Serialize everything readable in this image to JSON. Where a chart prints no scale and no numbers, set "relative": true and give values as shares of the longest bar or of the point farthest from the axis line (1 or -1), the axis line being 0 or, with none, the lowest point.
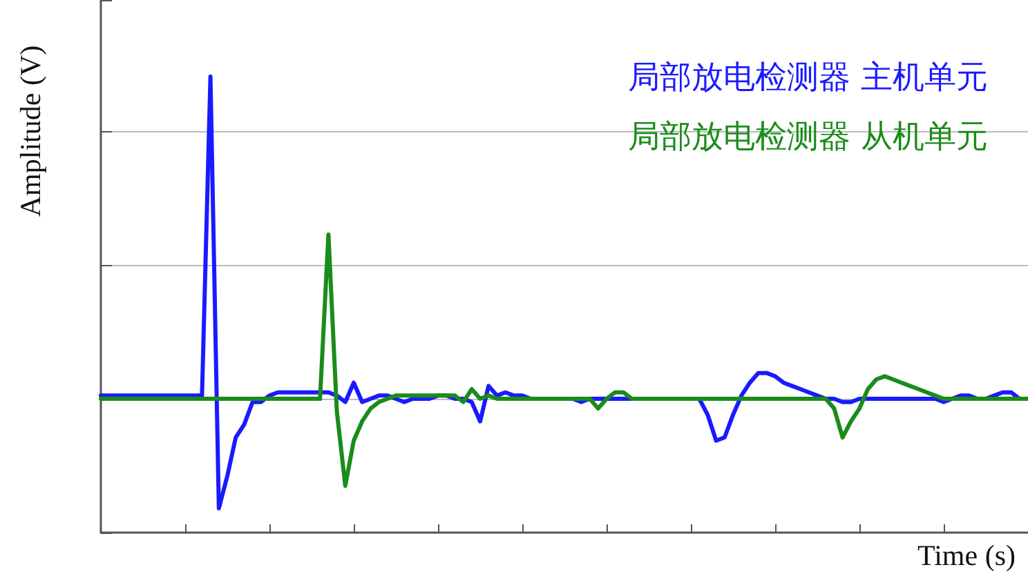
{
  "chart_data": {
    "type": "line",
    "relative": true,
    "xlabel": "Time (s)",
    "ylabel": "Amplitude (V)",
    "categories": [
      null,
      null,
      null,
      null,
      null,
      null,
      null,
      null,
      null,
      null,
      null,
      null,
      null,
      null,
      null,
      null,
      null,
      null,
      null,
      null,
      null,
      null,
      null,
      null,
      null,
      null,
      null,
      null,
      null,
      null,
      null,
      null,
      null,
      null,
      null,
      null,
      null,
      null,
      null,
      null,
      null,
      null,
      null,
      null,
      null,
      null,
      null,
      null,
      null,
      null,
      null,
      null,
      null,
      null,
      null,
      null,
      null,
      null,
      null,
      null,
      null,
      null,
      null,
      null,
      null,
      null,
      null,
      null,
      null,
      null,
      null,
      null,
      null,
      null,
      null,
      null,
      null,
      null,
      null,
      null,
      null,
      null,
      null,
      null,
      null,
      null,
      null,
      null,
      null,
      null,
      null,
      null,
      null,
      null,
      null,
      null,
      null,
      null,
      null,
      null,
      null,
      null,
      null,
      null,
      null,
      null,
      null,
      null,
      null,
      null,
      null
    ],
    "series": [
      {
        "name": "局部放电检测器 主机单元",
        "color": "#1a1aff",
        "values": [
          0.01,
          0.01,
          0.01,
          0.01,
          0.01,
          0.01,
          0.01,
          0.01,
          0.01,
          0.01,
          0.01,
          0.01,
          0.01,
          1,
          -0.34,
          -0.24,
          -0.12,
          -0.08,
          -0.01,
          -0.01,
          0.01,
          0.02,
          0.02,
          0.02,
          0.02,
          0.02,
          0.02,
          0.02,
          0.01,
          -0.01,
          0.05,
          -0.01,
          0,
          0.01,
          0.01,
          0,
          -0.01,
          0,
          0,
          0,
          0.01,
          0.01,
          0,
          0,
          -0.01,
          -0.07,
          0.04,
          0.01,
          0.02,
          0.01,
          0.01,
          0,
          0,
          0,
          0,
          0,
          0,
          -0.01,
          0,
          0,
          0,
          0,
          0,
          0,
          0,
          0,
          0,
          0,
          0,
          0,
          0,
          0,
          -0.05,
          -0.13,
          -0.12,
          -0.05,
          0.01,
          0.05,
          0.08,
          0.08,
          0.07,
          0.05,
          0.04,
          0.03,
          0.02,
          0.01,
          0,
          0,
          -0.01,
          -0.01,
          0,
          0,
          0,
          0,
          0,
          0,
          0,
          0,
          0,
          0,
          -0.01,
          0,
          0.01,
          0.01,
          0,
          0,
          0.01,
          0.02,
          0.02,
          0,
          0
        ]
      },
      {
        "name": "局部放电检测器 从机单元",
        "color": "#1a8c1a",
        "values": [
          0,
          0,
          0,
          0,
          0,
          0,
          0,
          0,
          0,
          0,
          0,
          0,
          0,
          0,
          0,
          0,
          0,
          0,
          0,
          0,
          0,
          0,
          0,
          0,
          0,
          0,
          0,
          0.51,
          -0.04,
          -0.27,
          -0.13,
          -0.07,
          -0.03,
          -0.01,
          0,
          0.01,
          0.01,
          0.01,
          0.01,
          0.01,
          0.01,
          0.01,
          0.01,
          -0.01,
          0.03,
          0,
          0.01,
          0,
          0,
          0,
          0,
          0,
          0,
          0,
          0,
          0,
          0,
          0,
          0,
          -0.03,
          0,
          0.02,
          0.02,
          0,
          0,
          0,
          0,
          0,
          0,
          0,
          0,
          0,
          0,
          0,
          0,
          0,
          0,
          0,
          0,
          0,
          0,
          0,
          0,
          0,
          0,
          0,
          0,
          -0.03,
          -0.12,
          -0.07,
          -0.03,
          0.03,
          0.06,
          0.07,
          0.06,
          0.05,
          0.04,
          0.03,
          0.02,
          0.01,
          0,
          0,
          0,
          0,
          0,
          0,
          0,
          0,
          0,
          0,
          0
        ]
      }
    ],
    "grid": "y",
    "legend": "top right",
    "tick_labels": false,
    "line_style": "solid"
  }
}
